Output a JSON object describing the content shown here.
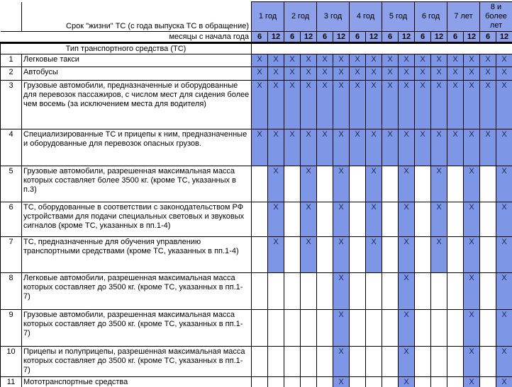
{
  "table": {
    "lifetime_header": "Срок \"жизни\" ТС (с года выпуска ТС в обращение)",
    "months_header": "месяцы с начала года",
    "type_header": "Тип транспортного средства (ТС)",
    "year_columns": [
      "1 год",
      "2 год",
      "3 год",
      "4 год",
      "5 год",
      "6 год",
      "7 лет",
      "8 и более лет"
    ],
    "month_subcolumns": [
      "6",
      "12"
    ],
    "mark_symbol": "X",
    "rows": [
      {
        "num": "1",
        "label": "Легковые такси",
        "marks": [
          1,
          1,
          1,
          1,
          1,
          1,
          1,
          1,
          1,
          1,
          1,
          1,
          1,
          1,
          1,
          1
        ]
      },
      {
        "num": "2",
        "label": "Автобусы",
        "marks": [
          1,
          1,
          1,
          1,
          1,
          1,
          1,
          1,
          1,
          1,
          1,
          1,
          1,
          1,
          1,
          1
        ]
      },
      {
        "num": "3",
        "label": "Грузовые автомобили, предназначенные и оборудованные для перевозок пассажиров, с числом мест для сидения более чем восемь (за исключением места для водителя)",
        "marks": [
          1,
          1,
          1,
          1,
          1,
          1,
          1,
          1,
          1,
          1,
          1,
          1,
          1,
          1,
          1,
          1
        ]
      },
      {
        "num": "4",
        "label": "Специализированные ТС и прицепы к ним, предназначенные и оборудованные для перевозок опасных грузов.",
        "marks": [
          1,
          1,
          1,
          1,
          1,
          1,
          1,
          1,
          1,
          1,
          1,
          1,
          1,
          1,
          1,
          1
        ]
      },
      {
        "num": "5",
        "label": "Грузовые автомобили, разрешенная максимальная масса которых составляет более 3500 кг. (кроме ТС, указанных в п.3)",
        "marks": [
          0,
          1,
          0,
          1,
          0,
          1,
          0,
          1,
          0,
          1,
          0,
          1,
          0,
          1,
          0,
          1
        ]
      },
      {
        "num": "6",
        "label": "ТС, оборудованные в соответствии с законодательством РФ устройствами для подачи специальных световых и звуковых сигналов (кроме ТС, указанных в пп.1-4)",
        "marks": [
          0,
          1,
          0,
          1,
          0,
          1,
          0,
          1,
          0,
          1,
          0,
          1,
          0,
          1,
          0,
          1
        ]
      },
      {
        "num": "7",
        "label": "ТС, предназначенные для обучения управлению транспортными средствами (кроме ТС, указанных в пп.1-4)",
        "marks": [
          0,
          1,
          0,
          1,
          0,
          1,
          0,
          1,
          0,
          1,
          0,
          1,
          0,
          1,
          0,
          1
        ]
      },
      {
        "num": "8",
        "label": "Легковые автомобили, разрешенная максимальная масса которых составляет до 3500 кг. (кроме ТС, указанных в пп.1-7)",
        "marks": [
          0,
          0,
          0,
          0,
          0,
          1,
          0,
          0,
          0,
          1,
          0,
          0,
          0,
          1,
          0,
          1
        ]
      },
      {
        "num": "9",
        "label": "Грузовые автомобили, разрешенная максимальная масса которых составляет до 3500 кг. (кроме ТС, указанных в пп.1-7)",
        "marks": [
          0,
          0,
          0,
          0,
          0,
          1,
          0,
          0,
          0,
          1,
          0,
          0,
          0,
          1,
          0,
          1
        ]
      },
      {
        "num": "10",
        "label": "Прицепы и полуприцепы, разрешенная максимальная масса которых составляет до 3500 кг. (кроме ТС, указанных в пп.1-7)",
        "marks": [
          0,
          0,
          0,
          0,
          0,
          1,
          0,
          0,
          0,
          1,
          0,
          0,
          0,
          1,
          0,
          1
        ]
      },
      {
        "num": "11",
        "label": "Мототранспортные средства",
        "marks": [
          0,
          0,
          0,
          0,
          0,
          1,
          0,
          0,
          0,
          1,
          0,
          0,
          0,
          1,
          0,
          1
        ]
      }
    ]
  },
  "colors": {
    "cell_fill": "#7D97E6",
    "header_fill": "#8CA1EA",
    "mark": "#1E2553",
    "border": "#000000"
  }
}
